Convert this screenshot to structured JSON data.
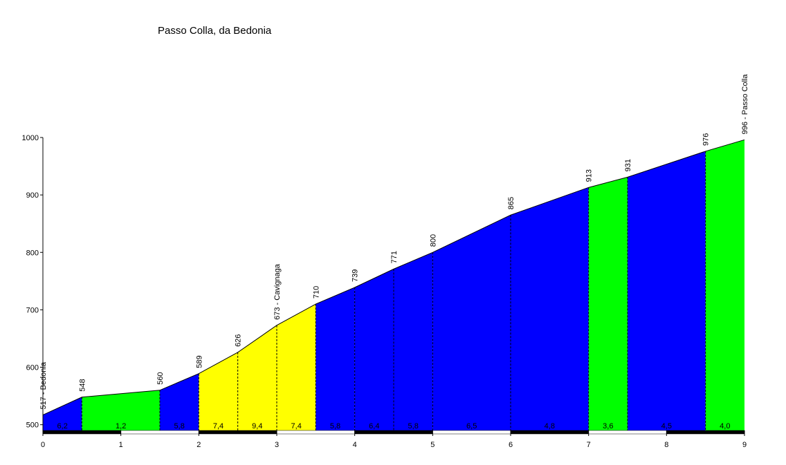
{
  "chart_data": {
    "type": "elevation-profile",
    "title": "Passo Colla, da Bedonia",
    "x": [
      0,
      0.5,
      1.5,
      2,
      2.5,
      3,
      3.5,
      4,
      4.5,
      5,
      6,
      7,
      7.5,
      8.5,
      9
    ],
    "values": [
      517,
      548,
      560,
      589,
      626,
      673,
      710,
      739,
      771,
      800,
      865,
      913,
      931,
      976,
      996
    ],
    "value_labels": [
      "517 - Bedonia",
      "548",
      "560",
      "589",
      "626",
      "673 - Cavignaga",
      "710",
      "739",
      "771",
      "800",
      "865",
      "913",
      "931",
      "976",
      "996 - Passo Colla"
    ],
    "segments": {
      "gradients": [
        6.2,
        1.2,
        5.8,
        7.4,
        9.4,
        7.4,
        5.8,
        6.4,
        5.8,
        6.5,
        4.8,
        3.6,
        4.5,
        4.0
      ],
      "value_labels": [
        "6,2",
        "1,2",
        "5,8",
        "7,4",
        "9,4",
        "7,4",
        "5,8",
        "6,4",
        "5,8",
        "6,5",
        "4,8",
        "3,6",
        "4,5",
        "4,0"
      ],
      "colors": [
        "#0000ff",
        "#00ff00",
        "#0000ff",
        "#ffff00",
        "#ffff00",
        "#ffff00",
        "#0000ff",
        "#0000ff",
        "#0000ff",
        "#0000ff",
        "#0000ff",
        "#00ff00",
        "#0000ff",
        "#00ff00"
      ]
    },
    "xlim": [
      0,
      9
    ],
    "xticks": [
      0,
      1,
      2,
      3,
      4,
      5,
      6,
      7,
      8,
      9
    ],
    "ylim": [
      490,
      1000
    ],
    "yticks": [
      500,
      600,
      700,
      800,
      900,
      1000
    ]
  }
}
